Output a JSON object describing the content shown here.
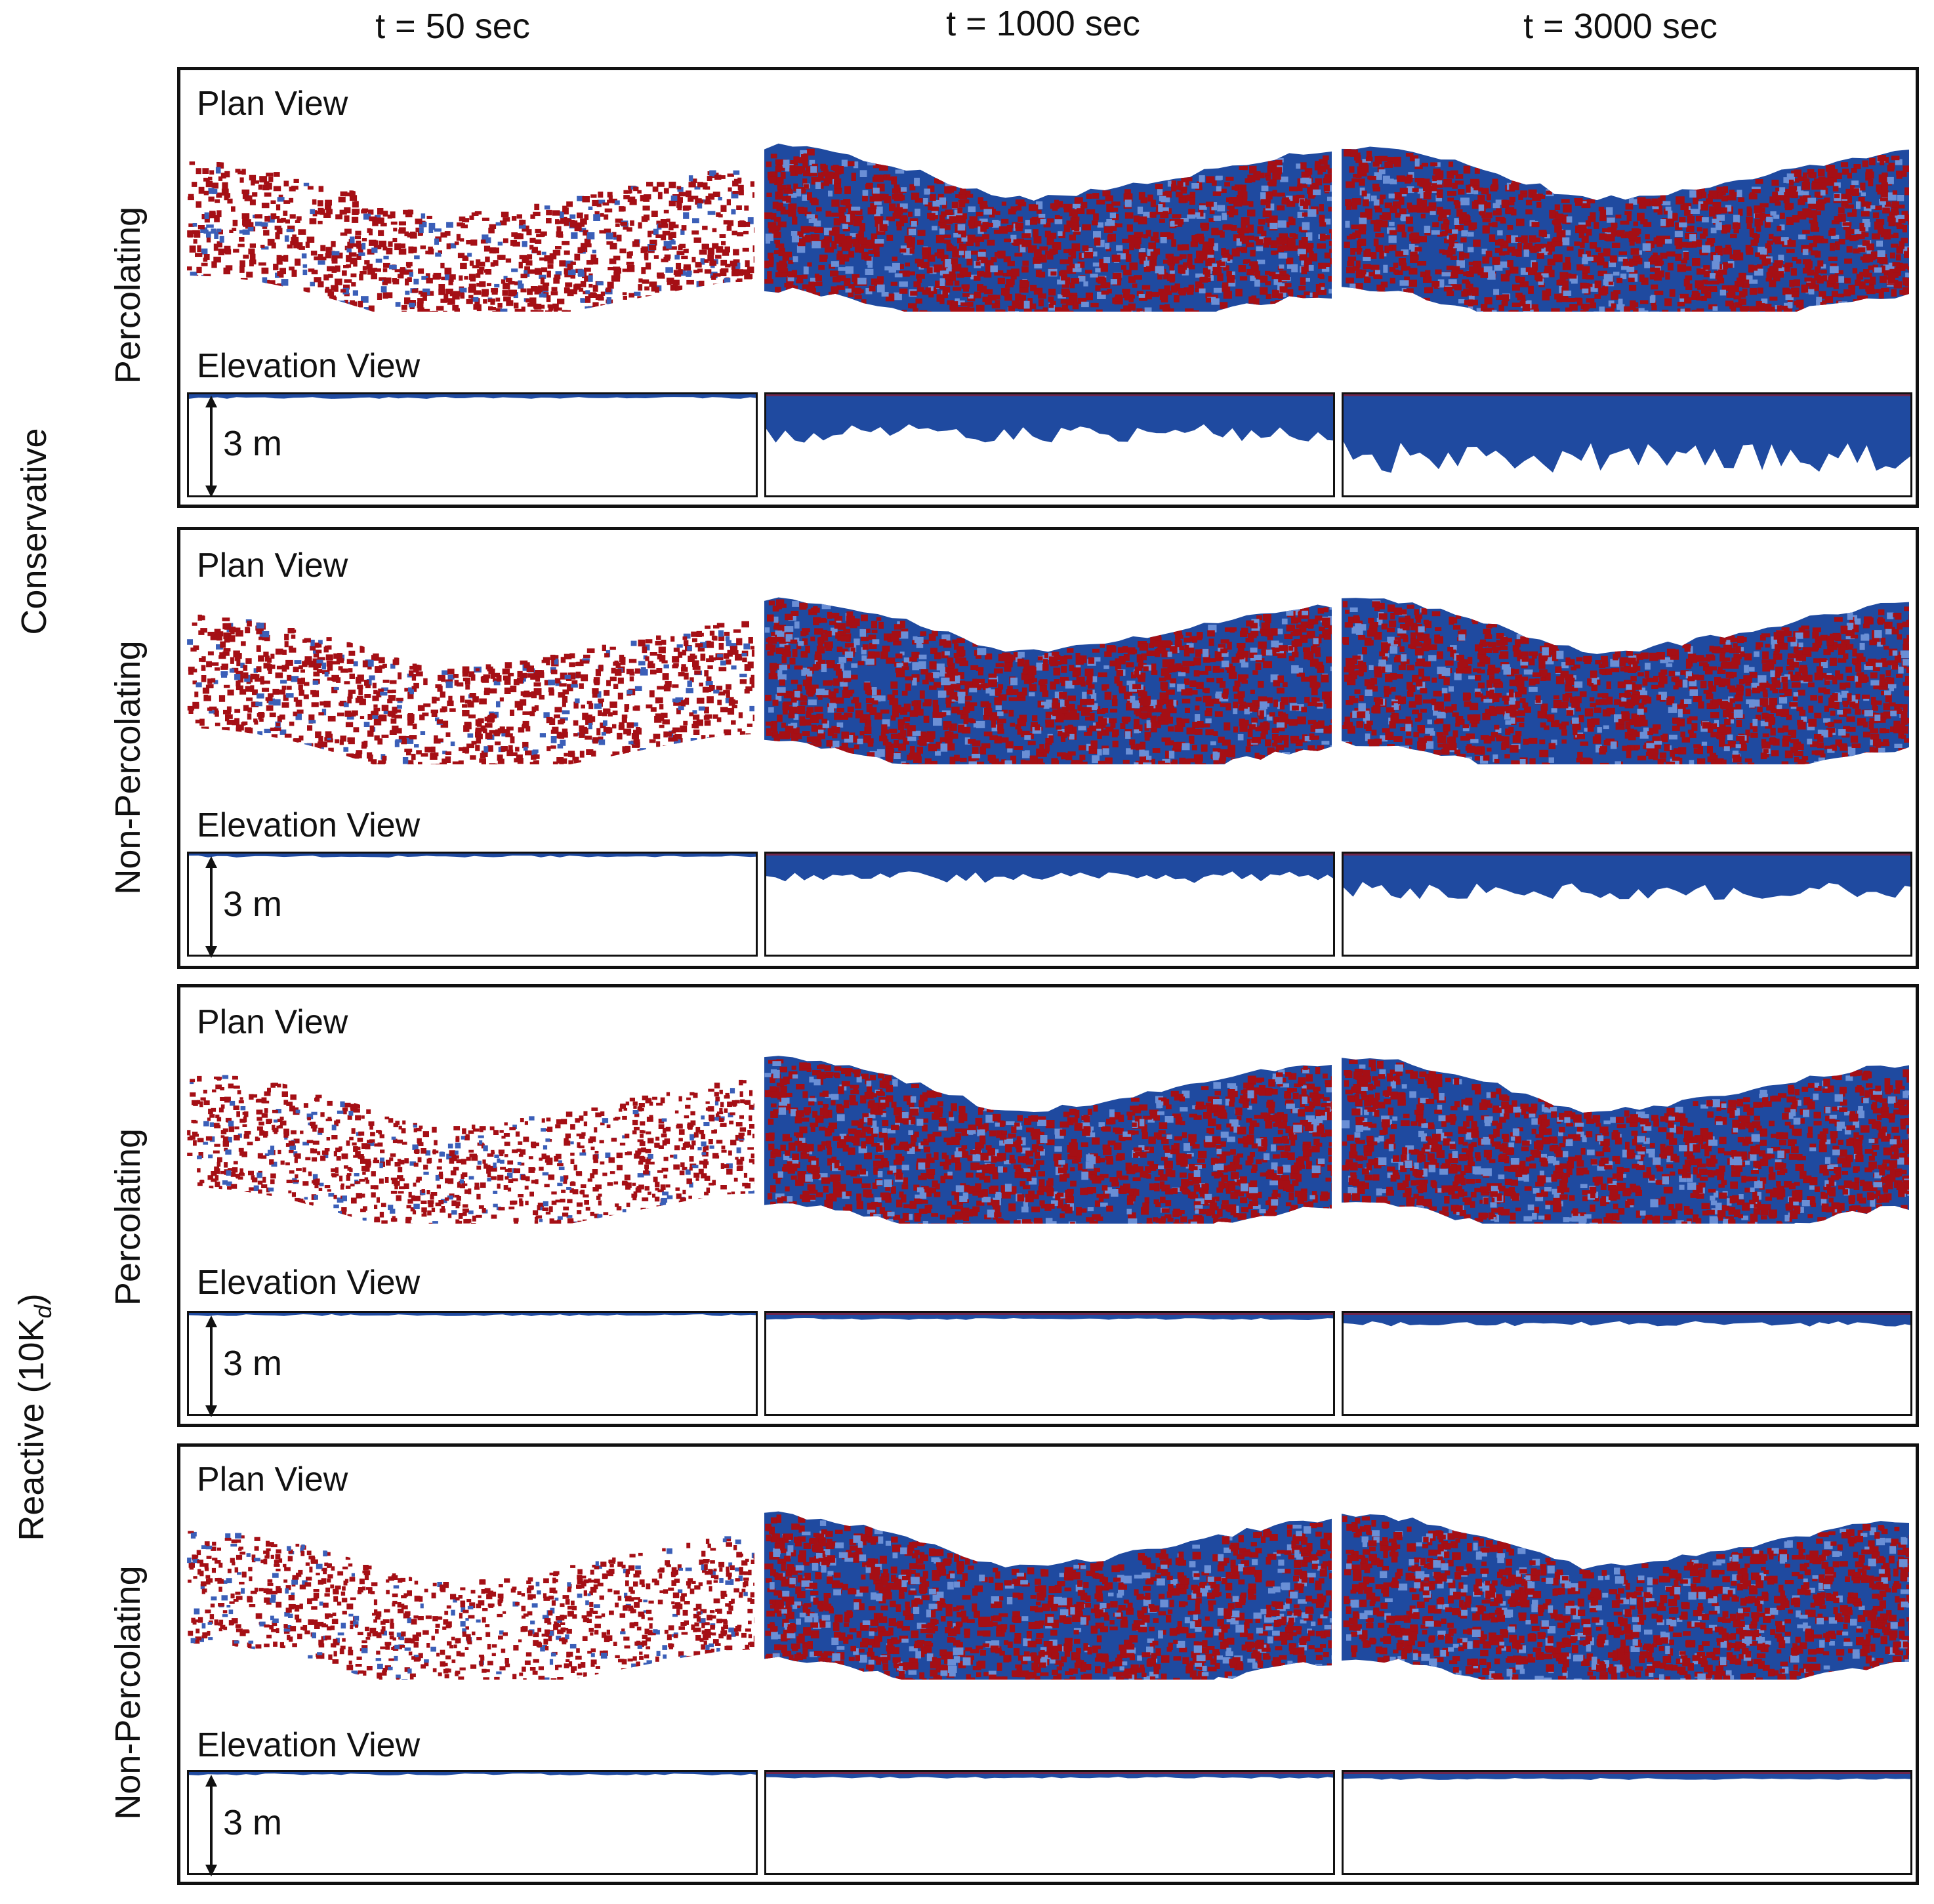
{
  "columns": [
    "t = 50 sec",
    "t = 1000 sec",
    "t = 3000 sec"
  ],
  "groups": [
    {
      "label": "Conservative"
    },
    {
      "label": "Reactive (10K",
      "subscript": "d",
      "suffix": ")"
    }
  ],
  "rows": [
    {
      "label": "Percolating",
      "plan_label": "Plan View",
      "elev_label": "Elevation View",
      "scale": "3 m"
    },
    {
      "label": "Non-Percolating",
      "plan_label": "Plan View",
      "elev_label": "Elevation View",
      "scale": "3 m"
    },
    {
      "label": "Percolating",
      "plan_label": "Plan View",
      "elev_label": "Elevation View",
      "scale": "3 m"
    },
    {
      "label": "Non-Percolating",
      "plan_label": "Plan View",
      "elev_label": "Elevation View",
      "scale": "3 m"
    }
  ],
  "colors": {
    "red": "#a50f15",
    "blue": "#1f4aa0",
    "border": "#111111"
  }
}
